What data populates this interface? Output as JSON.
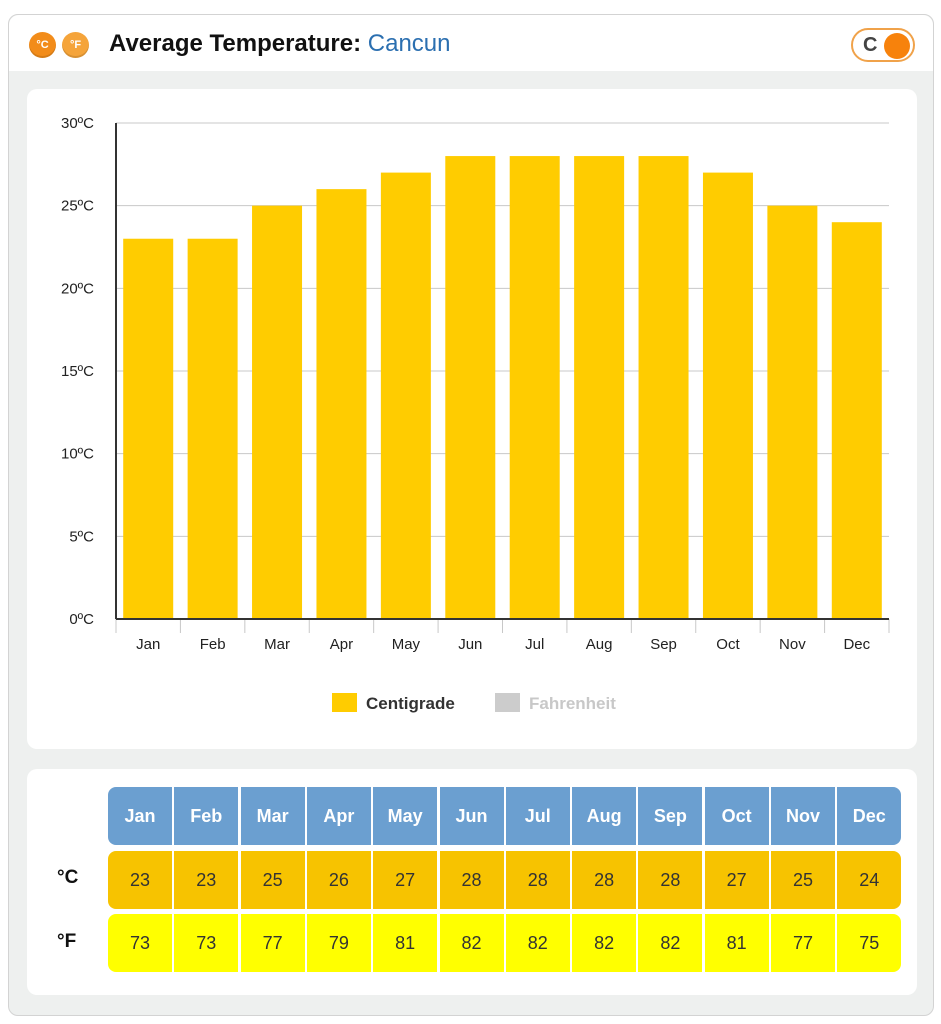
{
  "header": {
    "icon_c": "°C",
    "icon_f": "°F",
    "title": "Average Temperature:",
    "city": "Cancun",
    "toggle_label": "C"
  },
  "chart_data": {
    "type": "bar",
    "categories": [
      "Jan",
      "Feb",
      "Mar",
      "Apr",
      "May",
      "Jun",
      "Jul",
      "Aug",
      "Sep",
      "Oct",
      "Nov",
      "Dec"
    ],
    "series": [
      {
        "name": "Centigrade",
        "values": [
          23,
          23,
          25,
          26,
          27,
          28,
          28,
          28,
          28,
          27,
          25,
          24
        ],
        "color": "#ffcc00",
        "active": true
      },
      {
        "name": "Fahrenheit",
        "values": [
          73,
          73,
          77,
          79,
          81,
          82,
          82,
          82,
          82,
          81,
          77,
          75
        ],
        "color": "#cccccc",
        "active": false
      }
    ],
    "ylim": [
      0,
      30
    ],
    "yticks": [
      "0ºC",
      "5ºC",
      "10ºC",
      "15ºC",
      "20ºC",
      "25ºC",
      "30ºC"
    ],
    "grid": true,
    "legend_position": "bottom-center"
  },
  "table": {
    "months": [
      "Jan",
      "Feb",
      "Mar",
      "Apr",
      "May",
      "Jun",
      "Jul",
      "Aug",
      "Sep",
      "Oct",
      "Nov",
      "Dec"
    ],
    "c_label": "°C",
    "f_label": "°F",
    "celsius": [
      "23",
      "23",
      "25",
      "26",
      "27",
      "28",
      "28",
      "28",
      "28",
      "27",
      "25",
      "24"
    ],
    "fahrenheit": [
      "73",
      "73",
      "77",
      "79",
      "81",
      "82",
      "82",
      "82",
      "82",
      "81",
      "77",
      "75"
    ]
  },
  "colors": {
    "accent_orange": "#f7820c",
    "bar_yellow": "#ffcc00",
    "header_blue": "#6b9fd0",
    "city_blue": "#2b6fb0",
    "f_row_yellow": "#ffff00"
  }
}
